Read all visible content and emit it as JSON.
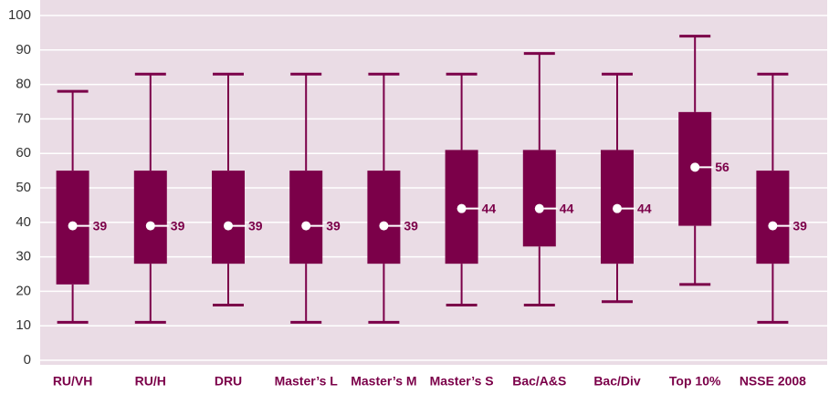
{
  "chart_data": {
    "type": "box",
    "categories": [
      "RU/VH",
      "RU/H",
      "DRU",
      "Master’s L",
      "Master’s M",
      "Master’s S",
      "Bac/A&S",
      "Bac/Div",
      "Top 10%",
      "NSSE 2008"
    ],
    "boxes": [
      {
        "low": 11,
        "q1": 22,
        "median": 39,
        "q3": 55,
        "high": 78
      },
      {
        "low": 11,
        "q1": 28,
        "median": 39,
        "q3": 55,
        "high": 83
      },
      {
        "low": 16,
        "q1": 28,
        "median": 39,
        "q3": 55,
        "high": 83
      },
      {
        "low": 11,
        "q1": 28,
        "median": 39,
        "q3": 55,
        "high": 83
      },
      {
        "low": 11,
        "q1": 28,
        "median": 39,
        "q3": 55,
        "high": 83
      },
      {
        "low": 16,
        "q1": 28,
        "median": 44,
        "q3": 61,
        "high": 83
      },
      {
        "low": 16,
        "q1": 33,
        "median": 44,
        "q3": 61,
        "high": 89
      },
      {
        "low": 17,
        "q1": 28,
        "median": 44,
        "q3": 61,
        "high": 83
      },
      {
        "low": 22,
        "q1": 39,
        "median": 56,
        "q3": 72,
        "high": 94
      },
      {
        "low": 11,
        "q1": 28,
        "median": 39,
        "q3": 55,
        "high": 83
      }
    ],
    "color": "#7b0049",
    "ylim": [
      0,
      100
    ],
    "yticks": [
      0,
      10,
      20,
      30,
      40,
      50,
      60,
      70,
      80,
      90,
      100
    ],
    "grid": true
  }
}
